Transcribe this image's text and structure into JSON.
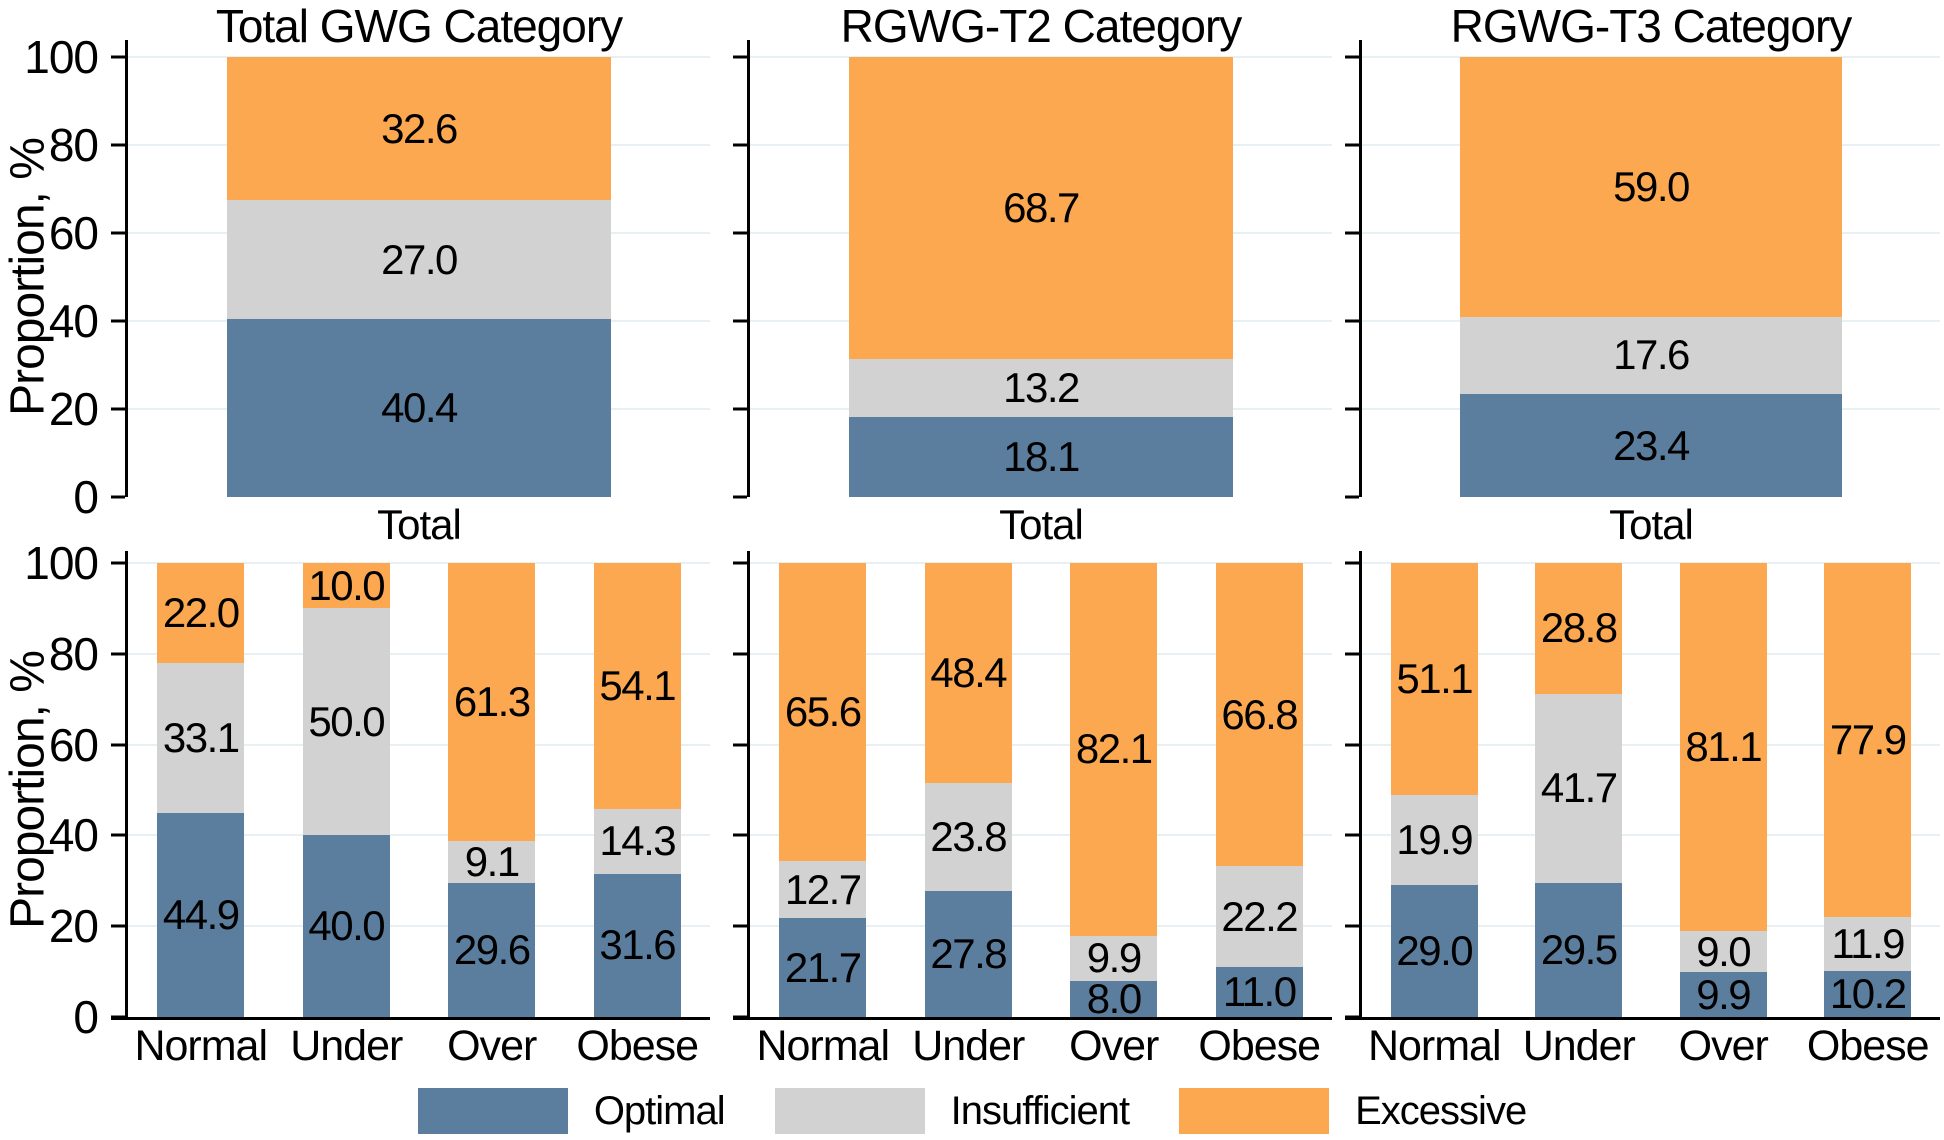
{
  "figure_type": "stacked-bar-figure",
  "ylabel": "Proportion, %",
  "yticks": [
    0,
    20,
    40,
    60,
    80,
    100
  ],
  "gridline_color": "#e9f0f3",
  "legend": [
    {
      "label": "Optimal",
      "color": "#5b7e9e"
    },
    {
      "label": "Insufficient",
      "color": "#d2d2d2"
    },
    {
      "label": "Excessive",
      "color": "#fca851"
    }
  ],
  "chart_data": [
    {
      "type": "bar",
      "stacked": true,
      "title": "Total GWG Category",
      "ylabel": "Proportion, %",
      "ylim": [
        0,
        100
      ],
      "top": {
        "category": "Total",
        "series": [
          {
            "name": "Optimal",
            "value": 40.4
          },
          {
            "name": "Insufficient",
            "value": 27.0
          },
          {
            "name": "Excessive",
            "value": 32.6
          }
        ]
      },
      "bottom": {
        "categories": [
          "Normal",
          "Under",
          "Over",
          "Obese"
        ],
        "series": [
          {
            "name": "Optimal",
            "values": [
              44.9,
              40.0,
              29.6,
              31.6
            ]
          },
          {
            "name": "Insufficient",
            "values": [
              33.1,
              50.0,
              9.1,
              14.3
            ]
          },
          {
            "name": "Excessive",
            "values": [
              22.0,
              10.0,
              61.3,
              54.1
            ]
          }
        ]
      }
    },
    {
      "type": "bar",
      "stacked": true,
      "title": "RGWG-T2 Category",
      "ylabel": "Proportion, %",
      "ylim": [
        0,
        100
      ],
      "top": {
        "category": "Total",
        "series": [
          {
            "name": "Optimal",
            "value": 18.1
          },
          {
            "name": "Insufficient",
            "value": 13.2
          },
          {
            "name": "Excessive",
            "value": 68.7
          }
        ]
      },
      "bottom": {
        "categories": [
          "Normal",
          "Under",
          "Over",
          "Obese"
        ],
        "series": [
          {
            "name": "Optimal",
            "values": [
              21.7,
              27.8,
              8.0,
              11.0
            ]
          },
          {
            "name": "Insufficient",
            "values": [
              12.7,
              23.8,
              9.9,
              22.2
            ]
          },
          {
            "name": "Excessive",
            "values": [
              65.6,
              48.4,
              82.1,
              66.8
            ]
          }
        ]
      }
    },
    {
      "type": "bar",
      "stacked": true,
      "title": "RGWG-T3 Category",
      "ylabel": "Proportion, %",
      "ylim": [
        0,
        100
      ],
      "top": {
        "category": "Total",
        "series": [
          {
            "name": "Optimal",
            "value": 23.4
          },
          {
            "name": "Insufficient",
            "value": 17.6
          },
          {
            "name": "Excessive",
            "value": 59.0
          }
        ]
      },
      "bottom": {
        "categories": [
          "Normal",
          "Under",
          "Over",
          "Obese"
        ],
        "series": [
          {
            "name": "Optimal",
            "values": [
              29.0,
              29.5,
              9.9,
              10.2
            ]
          },
          {
            "name": "Insufficient",
            "values": [
              19.9,
              41.7,
              9.0,
              11.9
            ]
          },
          {
            "name": "Excessive",
            "values": [
              51.1,
              28.8,
              81.1,
              77.9
            ]
          }
        ]
      }
    }
  ]
}
